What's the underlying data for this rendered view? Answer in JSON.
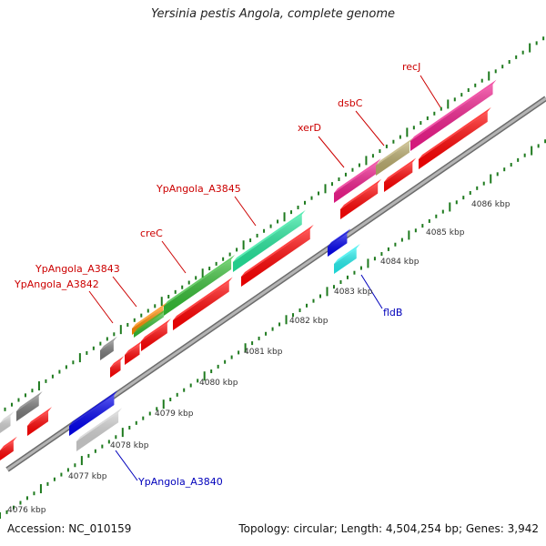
{
  "title": "Yersinia pestis Angola, complete genome",
  "footer": {
    "accession": "Accession: NC_010159",
    "summary": "Topology: circular; Length: 4,504,254 bp; Genes: 3,942"
  },
  "ruler_labels": [
    "4076 kbp",
    "4077 kbp",
    "4078 kbp",
    "4079 kbp",
    "4080 kbp",
    "4081 kbp",
    "4082 kbp",
    "4083 kbp",
    "4084 kbp",
    "4085 kbp",
    "4086 kbp"
  ],
  "gene_labels": {
    "recJ": "recJ",
    "dsbC": "dsbC",
    "xerD": "xerD",
    "a3845": "YpAngola_A3845",
    "creC": "creC",
    "a3843": "YpAngola_A3843",
    "a3842": "YpAngola_A3842",
    "fldB": "fldB",
    "a3840": "YpAngola_A3840"
  },
  "colors": {
    "forward_label": "#cc0000",
    "reverse_label": "#0000bb",
    "backbone": "#8c8c8c",
    "tick": "#1e7a1e",
    "cds": "#ff0000",
    "pink": "#ee1a8a",
    "khaki": "#b8aa6a",
    "mint": "#22e59a",
    "green": "#33bb33",
    "orange": "#ff8800",
    "grey": "#777777",
    "light_grey": "#cfcfcf",
    "blue": "#0000ee",
    "cyan": "#22eeee"
  }
}
